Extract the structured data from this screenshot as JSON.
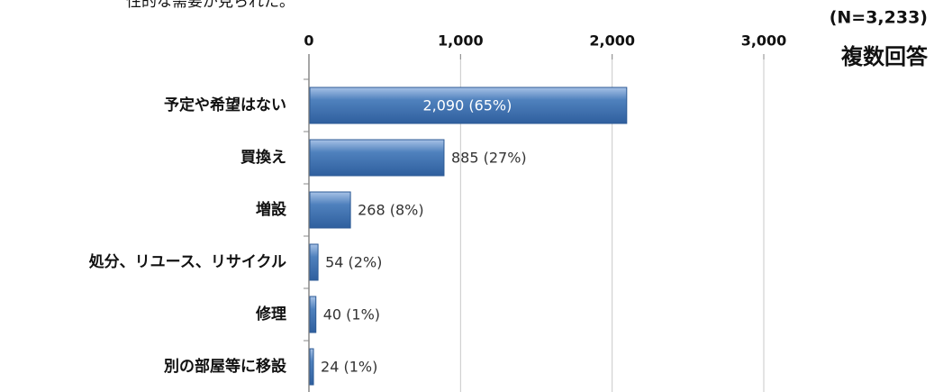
{
  "chart_data": {
    "type": "bar",
    "orientation": "horizontal",
    "annotations": [
      "性的な需要が見られた。",
      "(N=3,233)",
      "複数回答"
    ],
    "categories": [
      "予定や希望はない",
      "買換え",
      "増設",
      "処分、リユース、リサイクル",
      "修理",
      "別の部屋等に移設"
    ],
    "values": [
      2090,
      885,
      268,
      54,
      40,
      24
    ],
    "value_labels": [
      "2,090 (65%)",
      "885 (27%)",
      "268 (8%)",
      "54 (2%)",
      "40 (1%)",
      "24 (1%)"
    ],
    "color": "#4f81bd",
    "xlim": [
      0,
      3000
    ],
    "xticks": [
      0,
      {
        "value": 1000,
        "label": "1,000"
      },
      {
        "value": 2000,
        "label": "2,000"
      },
      {
        "value": 3000,
        "label": "3,000"
      }
    ],
    "grid": true
  }
}
